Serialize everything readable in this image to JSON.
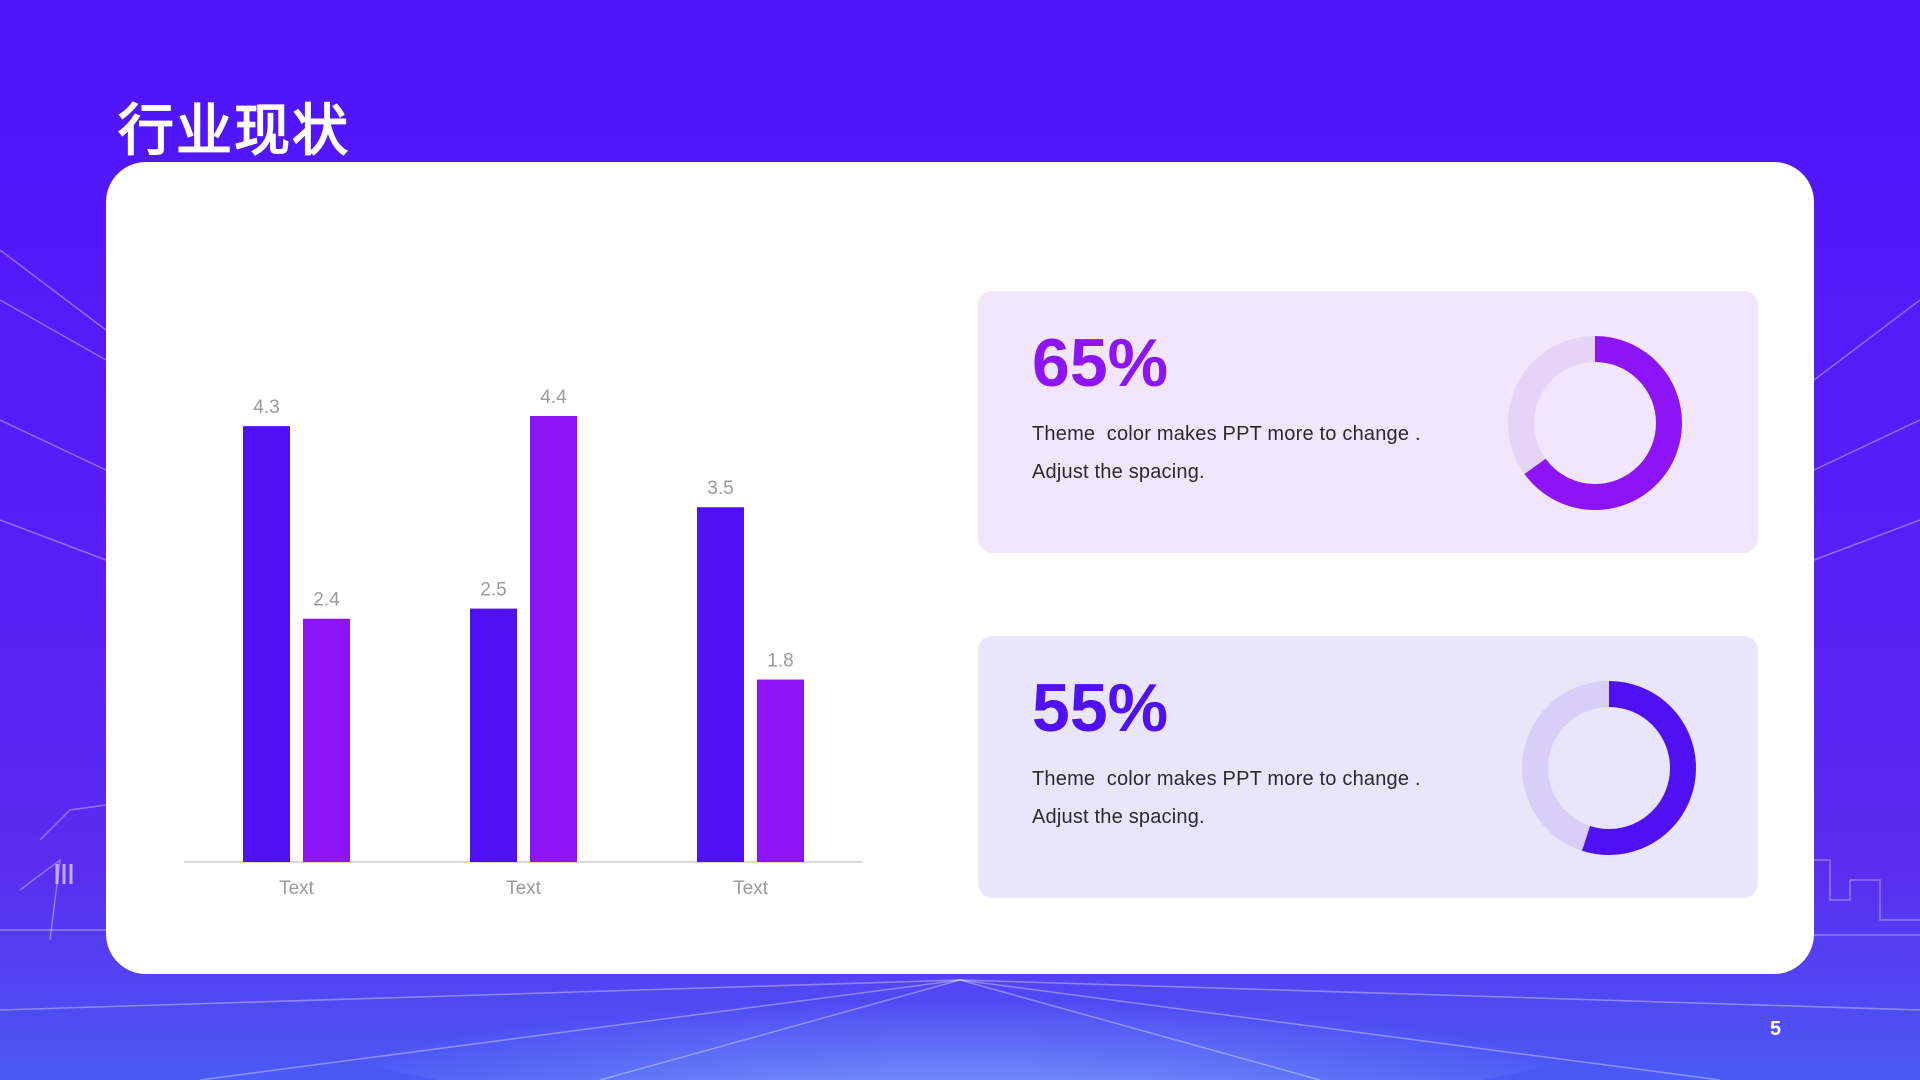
{
  "slide": {
    "title": "行业现状",
    "page_number": "5"
  },
  "colors": {
    "series1": "#5010f4",
    "series2": "#8d14f6"
  },
  "chart_data": {
    "type": "bar",
    "categories": [
      "Text",
      "Text",
      "Text"
    ],
    "series": [
      {
        "values": [
          4.3,
          2.5,
          3.5
        ]
      },
      {
        "values": [
          2.4,
          4.4,
          1.8
        ]
      }
    ],
    "title": "",
    "xlabel": "",
    "ylabel": "",
    "ylim": [
      0,
      4.4
    ],
    "grid": false,
    "data_labels": true
  },
  "stats": [
    {
      "value": "65%",
      "percent": 65,
      "line1": "Theme  color makes PPT more to change .",
      "line2": "Adjust the spacing.",
      "color": "#8d14f6",
      "track_color": "#e5d3f8"
    },
    {
      "value": "55%",
      "percent": 55,
      "line1": "Theme  color makes PPT more to change .",
      "line2": "Adjust the spacing.",
      "color": "#5010f4",
      "track_color": "#d7cff7"
    }
  ]
}
